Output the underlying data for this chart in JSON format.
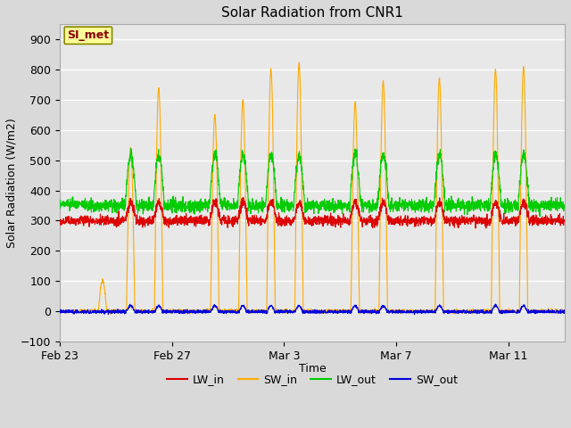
{
  "title": "Solar Radiation from CNR1",
  "xlabel": "Time",
  "ylabel": "Solar Radiation (W/m2)",
  "ylim": [
    -100,
    950
  ],
  "yticks": [
    -100,
    0,
    100,
    200,
    300,
    400,
    500,
    600,
    700,
    800,
    900
  ],
  "xtick_labels": [
    "Feb 23",
    "Feb 27",
    "Mar 3",
    "Mar 7",
    "Mar 11"
  ],
  "xtick_positions": [
    0,
    4,
    8,
    12,
    16
  ],
  "xlim": [
    0,
    18
  ],
  "background_color": "#e8e8e8",
  "plot_bg_color": "#e8e8e8",
  "grid_color": "#ffffff",
  "colors": {
    "LW_in": "#dd0000",
    "SW_in": "#ffaa00",
    "LW_out": "#00cc00",
    "SW_out": "#0000dd"
  },
  "annotation_text": "SI_met",
  "annotation_box_color": "#ffff99",
  "annotation_border_color": "#888800",
  "annotation_text_color": "#880000",
  "n_days": 18,
  "n_points_per_day": 144
}
